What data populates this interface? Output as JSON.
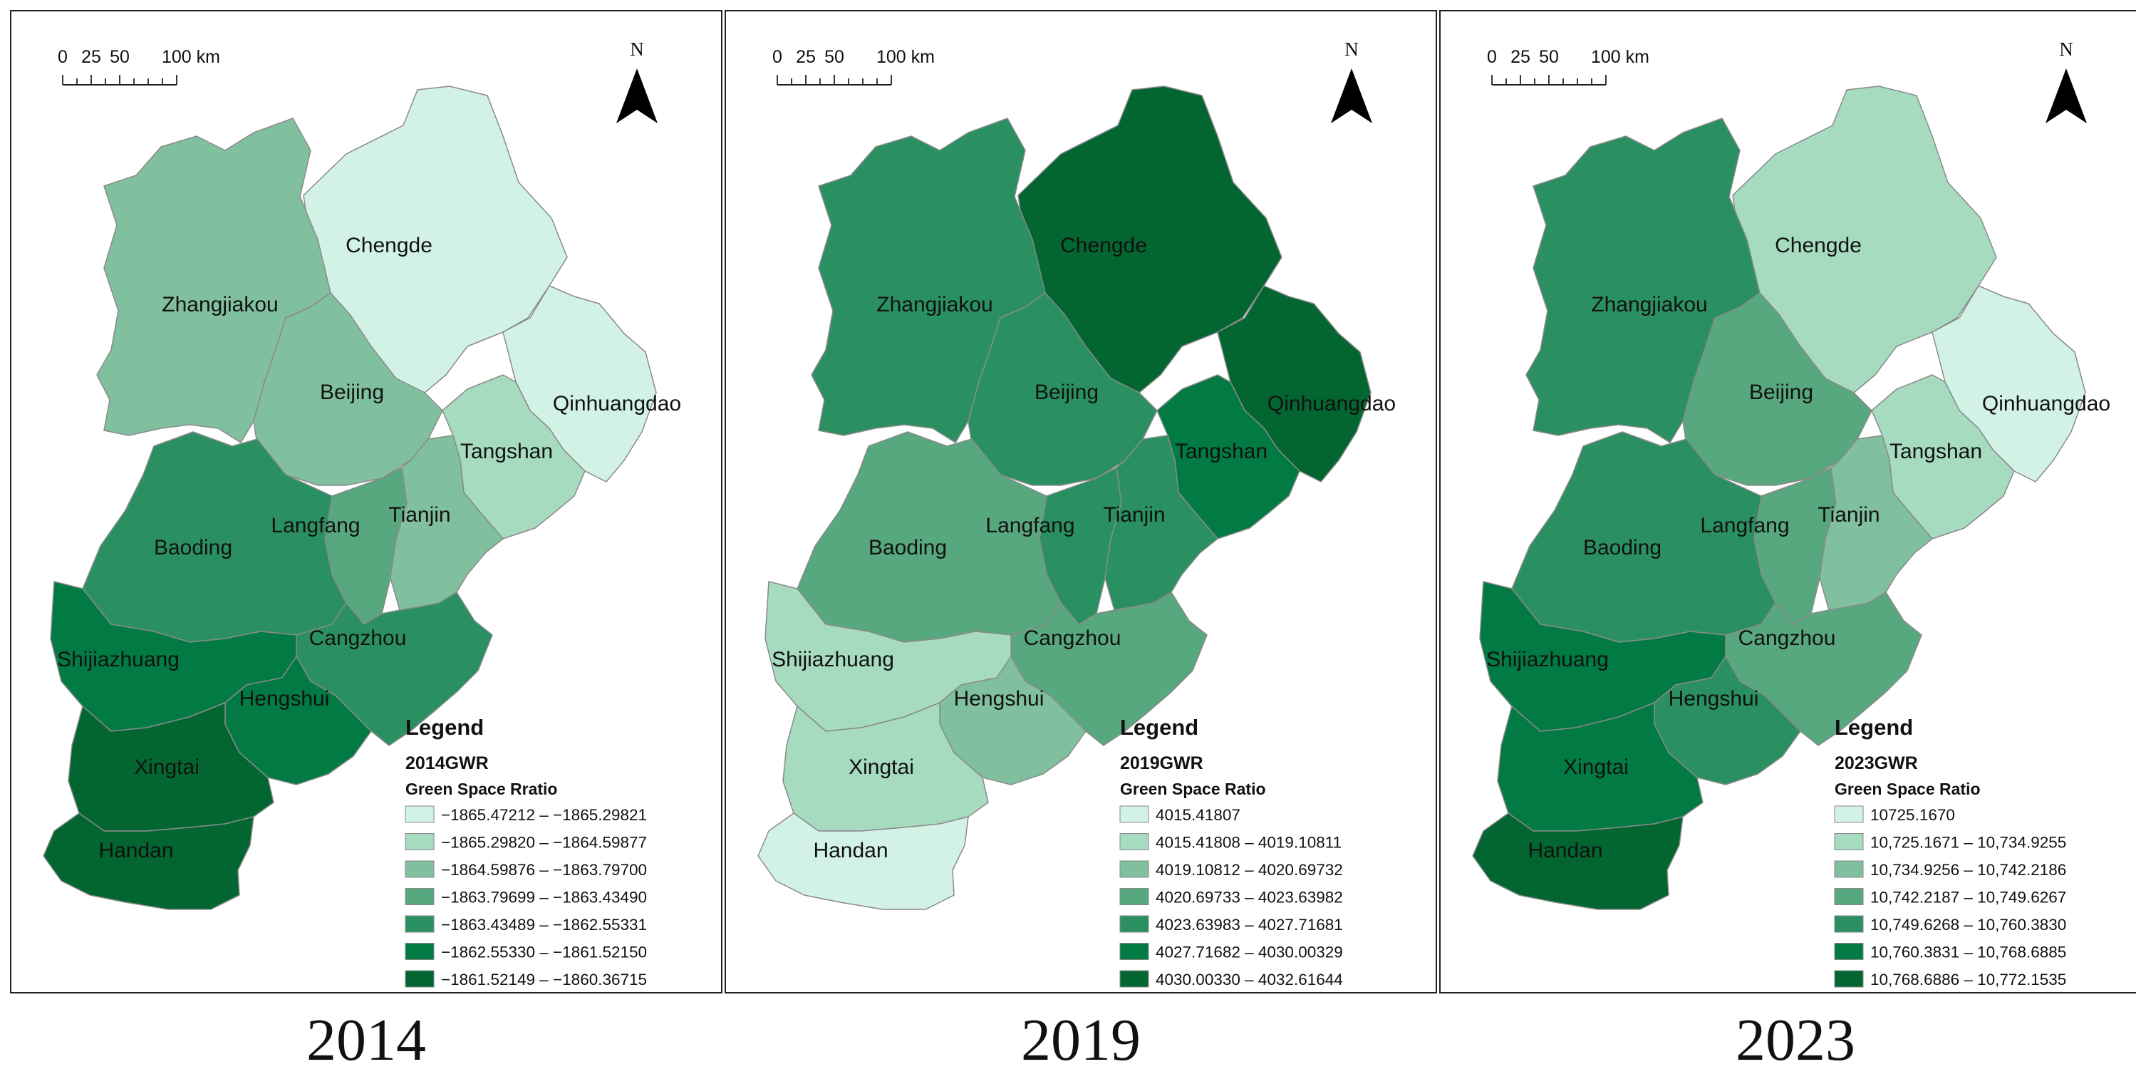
{
  "city_names": [
    "Chengde",
    "Zhangjiakou",
    "Beijing",
    "Qinhuangdao",
    "Tangshan",
    "Langfang",
    "Tianjin",
    "Baoding",
    "Cangzhou",
    "Shijiazhuang",
    "Hengshui",
    "Xingtai",
    "Handan"
  ],
  "scale_bar": {
    "labels": [
      "0",
      "25",
      "50",
      "100 km"
    ]
  },
  "north_label": "N",
  "legend_title": "Legend",
  "class_colors": [
    "#d2f2e6",
    "#a6dbc0",
    "#80c09e",
    "#58a87f",
    "#2a9062",
    "#027a44",
    "#036630"
  ],
  "panels": [
    {
      "year_caption": "2014",
      "legend_subtitle": "2014GWR",
      "legend_variable": "Green Space Rratio",
      "legend_items": [
        "−1865.47212 – −1865.29821",
        "−1865.29820 – −1864.59877",
        "−1864.59876 – −1863.79700",
        "−1863.79699 – −1863.43490",
        "−1863.43489 – −1862.55331",
        "−1862.55330 – −1861.52150",
        "−1861.52149 – −1860.36715"
      ],
      "city_class": {
        "Chengde": 0,
        "Zhangjiakou": 2,
        "Beijing": 2,
        "Qinhuangdao": 0,
        "Tangshan": 1,
        "Langfang": 3,
        "Tianjin": 2,
        "Baoding": 4,
        "Cangzhou": 4,
        "Shijiazhuang": 5,
        "Hengshui": 5,
        "Xingtai": 6,
        "Handan": 6
      }
    },
    {
      "year_caption": "2019",
      "legend_subtitle": "2019GWR",
      "legend_variable": "Green Space Ratio",
      "legend_items": [
        "4015.41807",
        "4015.41808 – 4019.10811",
        "4019.10812 – 4020.69732",
        "4020.69733 – 4023.63982",
        "4023.63983 – 4027.71681",
        "4027.71682 – 4030.00329",
        "4030.00330 – 4032.61644"
      ],
      "city_class": {
        "Chengde": 6,
        "Zhangjiakou": 4,
        "Beijing": 4,
        "Qinhuangdao": 6,
        "Tangshan": 5,
        "Langfang": 4,
        "Tianjin": 4,
        "Baoding": 3,
        "Cangzhou": 3,
        "Shijiazhuang": 1,
        "Hengshui": 2,
        "Xingtai": 1,
        "Handan": 0
      }
    },
    {
      "year_caption": "2023",
      "legend_subtitle": "2023GWR",
      "legend_variable": "Green Space Ratio",
      "legend_items": [
        "10725.1670",
        "10,725.1671 – 10,734.9255",
        "10,734.9256 – 10,742.2186",
        "10,742.2187 – 10,749.6267",
        "10,749.6268 – 10,760.3830",
        "10,760.3831 – 10,768.6885",
        "10,768.6886 – 10,772.1535"
      ],
      "city_class": {
        "Chengde": 1,
        "Zhangjiakou": 4,
        "Beijing": 3,
        "Qinhuangdao": 0,
        "Tangshan": 1,
        "Langfang": 3,
        "Tianjin": 2,
        "Baoding": 4,
        "Cangzhou": 3,
        "Shijiazhuang": 5,
        "Hengshui": 4,
        "Xingtai": 5,
        "Handan": 6
      }
    }
  ]
}
